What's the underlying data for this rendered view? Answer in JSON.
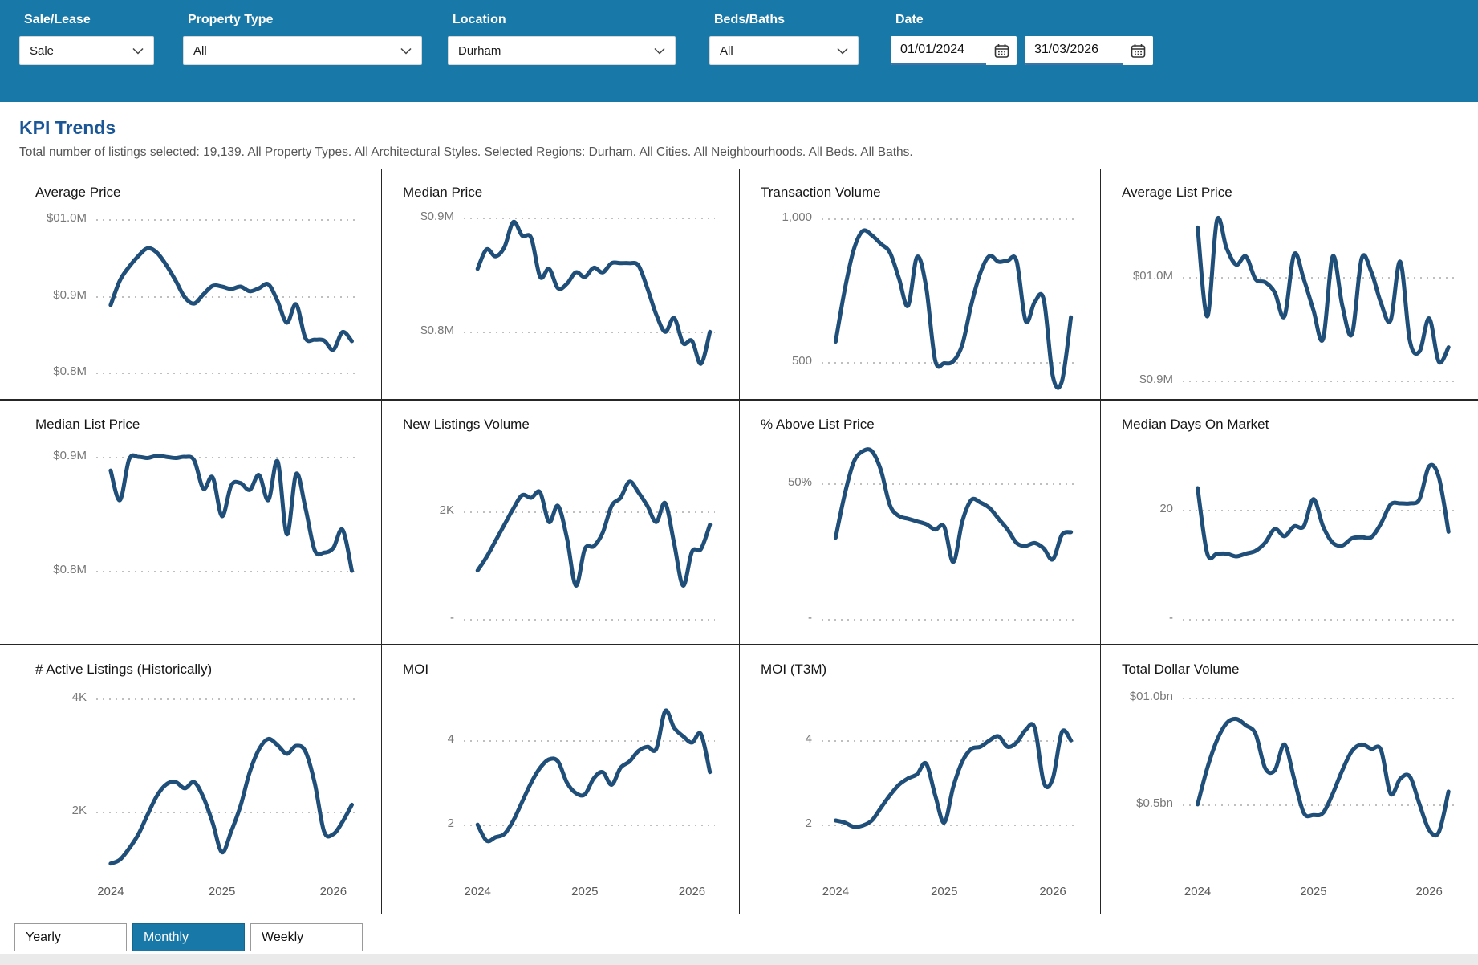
{
  "colors": {
    "header_bg": "#1878a8",
    "accent_blue": "#1878a8",
    "heading_blue": "#1b5796",
    "line_navy": "#1f4e79",
    "date_underline": "#3c74a8"
  },
  "filters": {
    "sale_lease": {
      "label": "Sale/Lease",
      "value": "Sale"
    },
    "property_type": {
      "label": "Property Type",
      "value": "All"
    },
    "location": {
      "label": "Location",
      "value": "Durham"
    },
    "beds_baths": {
      "label": "Beds/Baths",
      "value": "All"
    },
    "date": {
      "label": "Date",
      "start": "01/01/2024",
      "end": "31/03/2026"
    }
  },
  "page": {
    "title": "KPI Trends",
    "subtitle": "Total number of listings selected: 19,139. All Property Types. All Architectural Styles. Selected Regions: Durham. All Cities. All Neighbourhoods. All Beds. All Baths."
  },
  "period_buttons": [
    {
      "label": "Yearly",
      "selected": false
    },
    {
      "label": "Monthly",
      "selected": true
    },
    {
      "label": "Weekly",
      "selected": false
    }
  ],
  "chart_data": [
    {
      "id": "average-price",
      "type": "line",
      "title": "Average Price",
      "x_unit": "month",
      "x_start": "2024-01",
      "x_end": "2026-03",
      "ymax": 1.005,
      "ymin": 0.77,
      "gridlines": [
        {
          "label": "$01.0M",
          "value": 1.0
        },
        {
          "label": "$0.9M",
          "value": 0.9
        },
        {
          "label": "$0.8M",
          "value": 0.8
        }
      ],
      "values": [
        0.888,
        0.92,
        0.938,
        0.952,
        0.962,
        0.956,
        0.94,
        0.92,
        0.898,
        0.89,
        0.902,
        0.913,
        0.912,
        0.909,
        0.912,
        0.906,
        0.91,
        0.915,
        0.893,
        0.865,
        0.889,
        0.845,
        0.843,
        0.842,
        0.83,
        0.853,
        0.841
      ]
    },
    {
      "id": "median-price",
      "type": "line",
      "title": "Median Price",
      "x_unit": "month",
      "x_start": "2024-01",
      "x_end": "2026-03",
      "ymax": 0.902,
      "ymin": 0.744,
      "gridlines": [
        {
          "label": "$0.9M",
          "value": 0.9
        },
        {
          "label": "$0.8M",
          "value": 0.8
        }
      ],
      "values": [
        0.855,
        0.872,
        0.866,
        0.874,
        0.896,
        0.884,
        0.882,
        0.848,
        0.855,
        0.838,
        0.842,
        0.852,
        0.848,
        0.856,
        0.852,
        0.86,
        0.86,
        0.86,
        0.858,
        0.838,
        0.815,
        0.8,
        0.812,
        0.79,
        0.792,
        0.772,
        0.8
      ]
    },
    {
      "id": "transaction-volume",
      "type": "line",
      "title": "Transaction Volume",
      "x_unit": "month",
      "x_start": "2024-01",
      "x_end": "2026-03",
      "ymax": 1010,
      "ymin": 382,
      "gridlines": [
        {
          "label": "1,000",
          "value": 1000
        },
        {
          "label": "500",
          "value": 500
        }
      ],
      "values": [
        570,
        750,
        890,
        955,
        940,
        910,
        880,
        790,
        695,
        865,
        760,
        505,
        495,
        502,
        560,
        700,
        810,
        868,
        848,
        852,
        850,
        642,
        708,
        716,
        450,
        432,
        655
      ]
    },
    {
      "id": "average-list-price",
      "type": "line",
      "title": "Average List Price",
      "x_unit": "month",
      "x_start": "2024-01",
      "x_end": "2026-03",
      "ymax": 1.06,
      "ymin": 0.885,
      "gridlines": [
        {
          "label": "$01.0M",
          "value": 1.0
        },
        {
          "label": "$0.9M",
          "value": 0.9
        }
      ],
      "values": [
        1.048,
        0.962,
        1.055,
        1.028,
        1.012,
        1.02,
        0.998,
        0.995,
        0.985,
        0.962,
        1.022,
        0.998,
        0.968,
        0.94,
        1.02,
        0.972,
        0.945,
        1.018,
        1.005,
        0.975,
        0.958,
        1.015,
        0.938,
        0.928,
        0.96,
        0.918,
        0.932
      ]
    },
    {
      "id": "median-list-price",
      "type": "line",
      "title": "Median List Price",
      "x_unit": "month",
      "x_start": "2024-01",
      "x_end": "2026-03",
      "ymax": 0.9085,
      "ymin": 0.75,
      "gridlines": [
        {
          "label": "$0.9M",
          "value": 0.9
        },
        {
          "label": "$0.8M",
          "value": 0.8
        }
      ],
      "values": [
        0.888,
        0.862,
        0.898,
        0.9,
        0.899,
        0.901,
        0.9,
        0.899,
        0.9,
        0.897,
        0.872,
        0.882,
        0.848,
        0.875,
        0.877,
        0.871,
        0.884,
        0.862,
        0.896,
        0.832,
        0.885,
        0.855,
        0.818,
        0.816,
        0.82,
        0.836,
        0.8
      ]
    },
    {
      "id": "new-listings-volume",
      "type": "line",
      "title": "New Listings Volume",
      "x_unit": "month",
      "x_start": "2024-01",
      "x_end": "2026-03",
      "ymax": 3190,
      "ymin": -165,
      "gridlines": [
        {
          "label": "2K",
          "value": 2000
        },
        {
          "label": "-",
          "value": 0
        }
      ],
      "values": [
        900,
        1150,
        1450,
        1750,
        2050,
        2300,
        2250,
        2350,
        1800,
        2100,
        1500,
        620,
        1300,
        1350,
        1600,
        2100,
        2250,
        2550,
        2350,
        2100,
        1800,
        2150,
        1400,
        620,
        1250,
        1300,
        1750
      ]
    },
    {
      "id": "pct-above-list-price",
      "type": "line",
      "title": "% Above List Price",
      "x_unit": "month",
      "x_start": "2024-01",
      "x_end": "2026-03",
      "ymax": 63.5,
      "ymin": -3.4,
      "gridlines": [
        {
          "label": "50%",
          "value": 50
        },
        {
          "label": "-",
          "value": 0
        }
      ],
      "values": [
        30,
        46,
        58,
        62,
        62,
        55,
        42,
        38,
        37,
        36,
        35,
        33,
        34,
        21,
        36,
        44,
        43,
        41,
        37,
        33,
        28,
        27,
        28,
        26,
        22,
        31,
        32
      ]
    },
    {
      "id": "median-days-on-market",
      "type": "line",
      "title": "Median Days On Market",
      "x_unit": "month",
      "x_start": "2024-01",
      "x_end": "2026-03",
      "ymax": 31.5,
      "ymin": -1.6,
      "gridlines": [
        {
          "label": "20",
          "value": 20
        },
        {
          "label": "-",
          "value": 0
        }
      ],
      "values": [
        24,
        12,
        12,
        12,
        11.5,
        12,
        12.5,
        14,
        16.5,
        15.2,
        17,
        17,
        22,
        17,
        14,
        13.5,
        14.8,
        15,
        15,
        17.5,
        21,
        21.2,
        21.2,
        22,
        28,
        26,
        16
      ]
    },
    {
      "id": "active-listings-historically",
      "type": "line",
      "title": "# Active Listings (Historically)",
      "x_unit": "month",
      "x_start": "2024-01",
      "x_end": "2026-03",
      "ymax": 4110,
      "ymin": 920,
      "gridlines": [
        {
          "label": "4K",
          "value": 4000
        },
        {
          "label": "2K",
          "value": 2000
        }
      ],
      "x_ticks": [
        {
          "label": "2024",
          "month": 0
        },
        {
          "label": "2025",
          "month": 12
        },
        {
          "label": "2026",
          "month": 24
        }
      ],
      "values": [
        1080,
        1150,
        1350,
        1600,
        1950,
        2280,
        2480,
        2520,
        2410,
        2520,
        2250,
        1800,
        1280,
        1650,
        2100,
        2700,
        3100,
        3280,
        3170,
        3020,
        3160,
        3060,
        2500,
        1650,
        1600,
        1820,
        2120
      ]
    },
    {
      "id": "moi",
      "type": "line",
      "title": "MOI",
      "x_unit": "month",
      "x_start": "2024-01",
      "x_end": "2026-03",
      "ymax": 5.15,
      "ymin": 0.86,
      "gridlines": [
        {
          "label": "4",
          "value": 4
        },
        {
          "label": "2",
          "value": 2
        }
      ],
      "x_ticks": [
        {
          "label": "2024",
          "month": 0
        },
        {
          "label": "2025",
          "month": 12
        },
        {
          "label": "2026",
          "month": 24
        }
      ],
      "values": [
        2.0,
        1.62,
        1.7,
        1.78,
        2.1,
        2.55,
        3.0,
        3.35,
        3.55,
        3.5,
        3.0,
        2.75,
        2.72,
        3.1,
        3.25,
        2.95,
        3.35,
        3.5,
        3.75,
        3.85,
        3.8,
        4.7,
        4.3,
        4.1,
        3.95,
        4.15,
        3.25
      ]
    },
    {
      "id": "moi-t3m",
      "type": "line",
      "title": "MOI (T3M)",
      "x_unit": "month",
      "x_start": "2024-01",
      "x_end": "2026-03",
      "ymax": 5.15,
      "ymin": 0.86,
      "gridlines": [
        {
          "label": "4",
          "value": 4
        },
        {
          "label": "2",
          "value": 2
        }
      ],
      "x_ticks": [
        {
          "label": "2024",
          "month": 0
        },
        {
          "label": "2025",
          "month": 12
        },
        {
          "label": "2026",
          "month": 24
        }
      ],
      "values": [
        2.1,
        2.05,
        1.95,
        1.98,
        2.1,
        2.4,
        2.7,
        2.95,
        3.1,
        3.2,
        3.45,
        2.7,
        2.05,
        2.9,
        3.5,
        3.8,
        3.85,
        4.0,
        4.1,
        3.85,
        3.95,
        4.25,
        4.3,
        3.0,
        3.1,
        4.2,
        4.0
      ]
    },
    {
      "id": "total-dollar-volume",
      "type": "line",
      "title": "Total Dollar Volume",
      "x_unit": "month",
      "x_start": "2024-01",
      "x_end": "2026-03",
      "ymax": 1.026,
      "ymin": 0.18,
      "gridlines": [
        {
          "label": "$01.0bn",
          "value": 1.0
        },
        {
          "label": "$0.5bn",
          "value": 0.5
        }
      ],
      "x_ticks": [
        {
          "label": "2024",
          "month": 0
        },
        {
          "label": "2025",
          "month": 12
        },
        {
          "label": "2026",
          "month": 24
        }
      ],
      "values": [
        0.5,
        0.67,
        0.8,
        0.88,
        0.9,
        0.87,
        0.83,
        0.67,
        0.66,
        0.78,
        0.62,
        0.46,
        0.45,
        0.46,
        0.55,
        0.66,
        0.75,
        0.78,
        0.76,
        0.755,
        0.55,
        0.62,
        0.63,
        0.5,
        0.38,
        0.37,
        0.56
      ]
    }
  ]
}
